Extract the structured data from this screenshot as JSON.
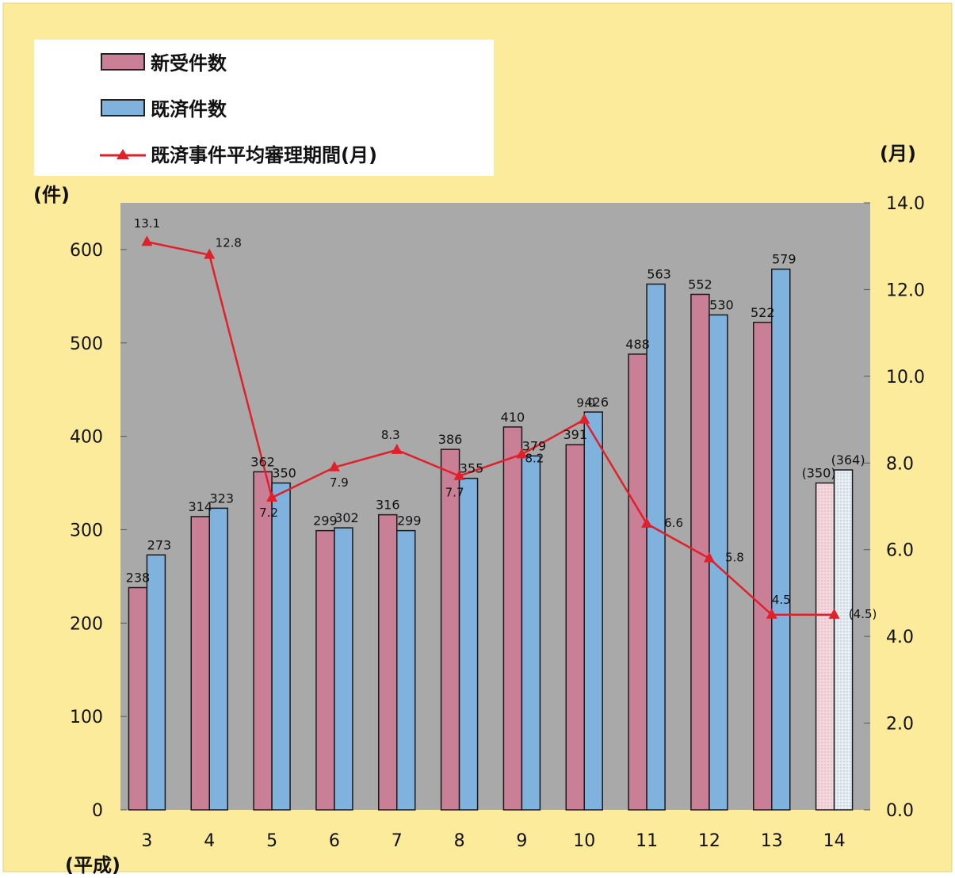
{
  "legend": {
    "new_cases": "新受件数",
    "closed_cases": "既済件数",
    "avg_period": "既済事件平均審理期間(月)"
  },
  "left_axis_unit": "(件)",
  "right_axis_unit": "(月)",
  "x_axis_unit": "(平成)",
  "chart_data": {
    "type": "bar",
    "categories": [
      "3",
      "4",
      "5",
      "6",
      "7",
      "8",
      "9",
      "10",
      "11",
      "12",
      "13",
      "14"
    ],
    "series": [
      {
        "name": "新受件数",
        "values": [
          238,
          314,
          362,
          299,
          316,
          386,
          410,
          391,
          488,
          552,
          522,
          350
        ],
        "labels": [
          "238",
          "314",
          "362",
          "299",
          "316",
          "386",
          "410",
          "391",
          "488",
          "552",
          "522",
          "(350)"
        ],
        "color": "#c98097",
        "estimated_last": true
      },
      {
        "name": "既済件数",
        "values": [
          273,
          323,
          350,
          302,
          299,
          355,
          379,
          426,
          563,
          530,
          579,
          364
        ],
        "labels": [
          "273",
          "323",
          "350",
          "302",
          "299",
          "355",
          "379",
          "426",
          "563",
          "530",
          "579",
          "(364)"
        ],
        "color": "#7fb3dd",
        "estimated_last": true
      },
      {
        "name": "既済事件平均審理期間(月)",
        "type": "line",
        "axis": "right",
        "values": [
          13.1,
          12.8,
          7.2,
          7.9,
          8.3,
          7.7,
          8.2,
          9.0,
          6.6,
          5.8,
          4.5,
          4.5
        ],
        "labels": [
          "13.1",
          "12.8",
          "7.2",
          "7.9",
          "8.3",
          "7.7",
          "8.2",
          "9.0",
          "6.6",
          "5.8",
          "4.5",
          "(4.5)"
        ],
        "color": "#e0202a"
      }
    ],
    "y_left": {
      "min": 0,
      "max": 650,
      "ticks": [
        "0",
        "100",
        "200",
        "300",
        "400",
        "500",
        "600"
      ]
    },
    "y_right": {
      "min": 0,
      "max": 14,
      "ticks": [
        "0.0",
        "2.0",
        "4.0",
        "6.0",
        "8.0",
        "10.0",
        "12.0",
        "14.0"
      ]
    },
    "colors": {
      "page": "#fbeb9a",
      "plot": "#a9a9a9",
      "legend_bg": "#ffffff"
    }
  }
}
